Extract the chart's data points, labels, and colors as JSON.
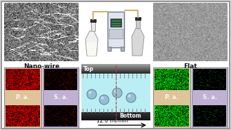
{
  "nanowire_label": "Nano-wire",
  "flat_label": "Flat",
  "pa_label": "P. a.",
  "sa_label": "S. a.",
  "top_label": "Top",
  "bottom_label": "Bottom",
  "flow_label": "12.0 ml/min",
  "bg_white": "#ffffff",
  "outer_border": "#aaaaaa",
  "pa_bg": "#dfc49a",
  "sa_bg": "#c0b0d4",
  "channel_color": "#b8eef4",
  "pump_bg": "#c8d4e0",
  "wall_top": "#484858",
  "wall_bot": "#2a2a38",
  "dashed_color": "#cc3333",
  "sphere_face": "#90bcd0",
  "sphere_edge": "#5a7888",
  "tubing_color": "#d4b070",
  "flow_arrow": "#111111",
  "panel_border": "#8888a0"
}
